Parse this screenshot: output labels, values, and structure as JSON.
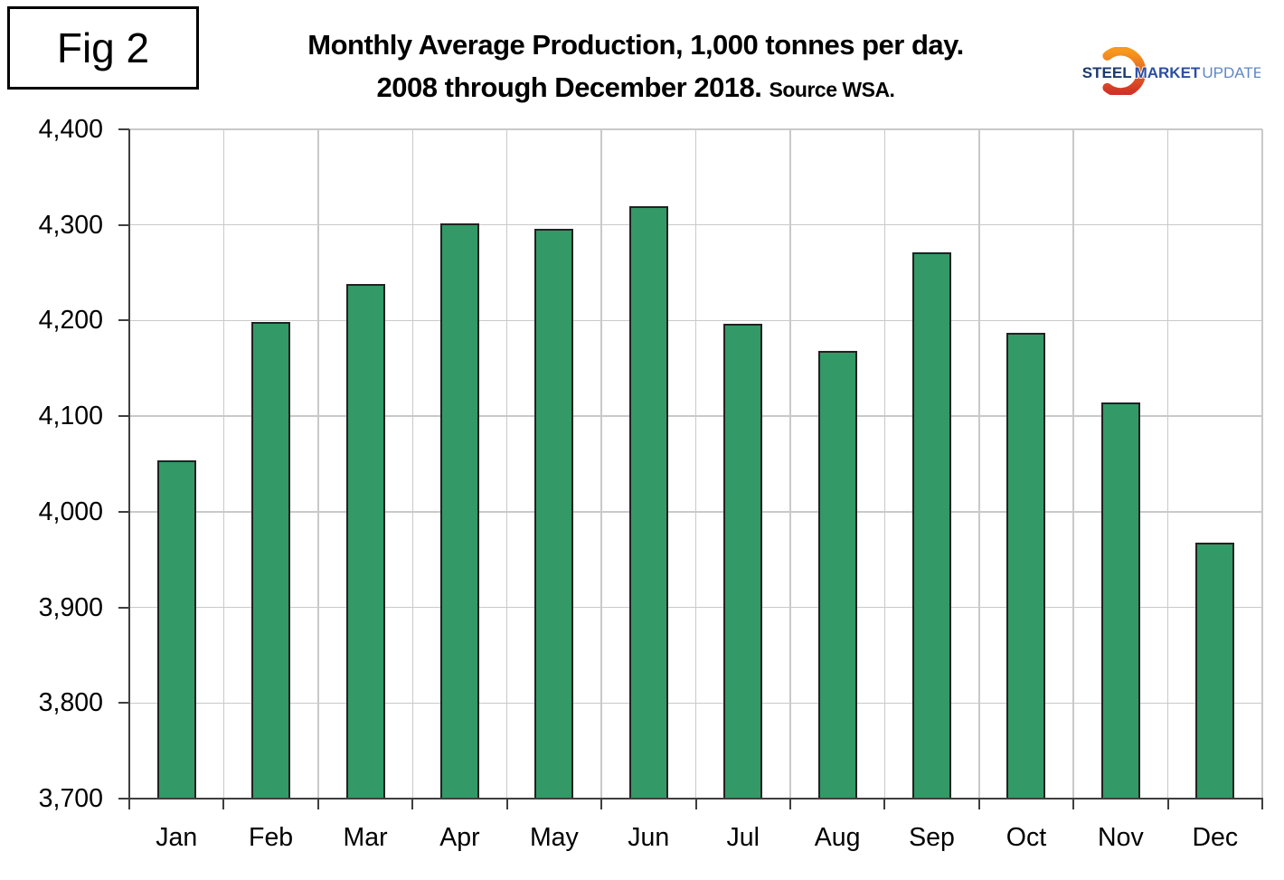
{
  "figure_label": "Fig 2",
  "title": {
    "line1": "Monthly Average Production, 1,000 tonnes per day.",
    "line2": "2008 through December 2018.",
    "source": "Source WSA."
  },
  "logo": {
    "steel": "STEEL",
    "market": "MARKET",
    "update": "UPDATE",
    "colors": {
      "steel_text": "#1a3a6b",
      "market_text": "#2b4fa2",
      "update_text": "#5d87c6",
      "swoosh_top": "#f8991d",
      "swoosh_bottom": "#d23127"
    }
  },
  "chart_data": {
    "type": "bar",
    "title": "Monthly Average Production, 1,000 tonnes per day. 2008 through December 2018. Source WSA.",
    "categories": [
      "Jan",
      "Feb",
      "Mar",
      "Apr",
      "May",
      "Jun",
      "Jul",
      "Aug",
      "Sep",
      "Oct",
      "Nov",
      "Dec"
    ],
    "values": [
      4054,
      4199,
      4238,
      4302,
      4296,
      4320,
      4197,
      4168,
      4271,
      4187,
      4114,
      3968
    ],
    "xlabel": "",
    "ylabel": "",
    "ylim": [
      3700,
      4400
    ],
    "ytick_step": 100,
    "ytick_labels": [
      "3,700",
      "3,800",
      "3,900",
      "4,000",
      "4,100",
      "4,200",
      "4,300",
      "4,400"
    ],
    "grid": true,
    "legend": false,
    "bar_color": "#339966",
    "bar_border_color": "#222222",
    "gridline_color": "#c9c9c9",
    "axis_color": "#3f3f3f"
  }
}
